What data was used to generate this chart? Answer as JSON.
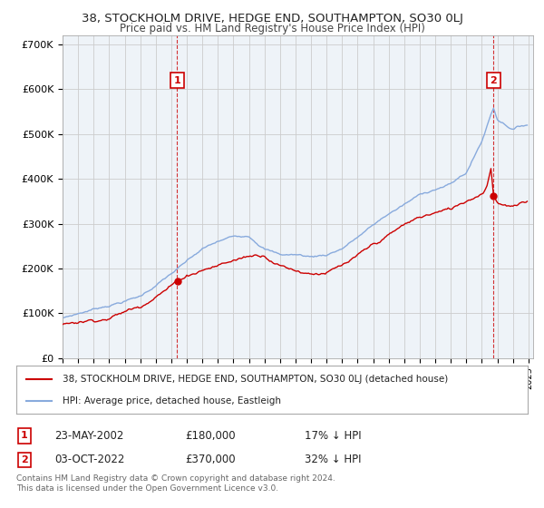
{
  "title": "38, STOCKHOLM DRIVE, HEDGE END, SOUTHAMPTON, SO30 0LJ",
  "subtitle": "Price paid vs. HM Land Registry's House Price Index (HPI)",
  "ylim": [
    0,
    720000
  ],
  "yticks": [
    0,
    100000,
    200000,
    300000,
    400000,
    500000,
    600000,
    700000
  ],
  "ytick_labels": [
    "£0",
    "£100K",
    "£200K",
    "£300K",
    "£400K",
    "£500K",
    "£600K",
    "£700K"
  ],
  "sale1_date_label": "23-MAY-2002",
  "sale1_price": 180000,
  "sale1_price_label": "£180,000",
  "sale1_hpi_label": "17% ↓ HPI",
  "sale1_x": 2002.38,
  "sale2_date_label": "03-OCT-2022",
  "sale2_price": 370000,
  "sale2_price_label": "£370,000",
  "sale2_hpi_label": "32% ↓ HPI",
  "sale2_x": 2022.75,
  "red_color": "#cc0000",
  "blue_color": "#88aadd",
  "chart_bg": "#eef3f8",
  "annotation_box_color": "#cc0000",
  "legend_label_red": "38, STOCKHOLM DRIVE, HEDGE END, SOUTHAMPTON, SO30 0LJ (detached house)",
  "legend_label_blue": "HPI: Average price, detached house, Eastleigh",
  "footnote": "Contains HM Land Registry data © Crown copyright and database right 2024.\nThis data is licensed under the Open Government Licence v3.0.",
  "background_color": "#ffffff",
  "grid_color": "#cccccc"
}
